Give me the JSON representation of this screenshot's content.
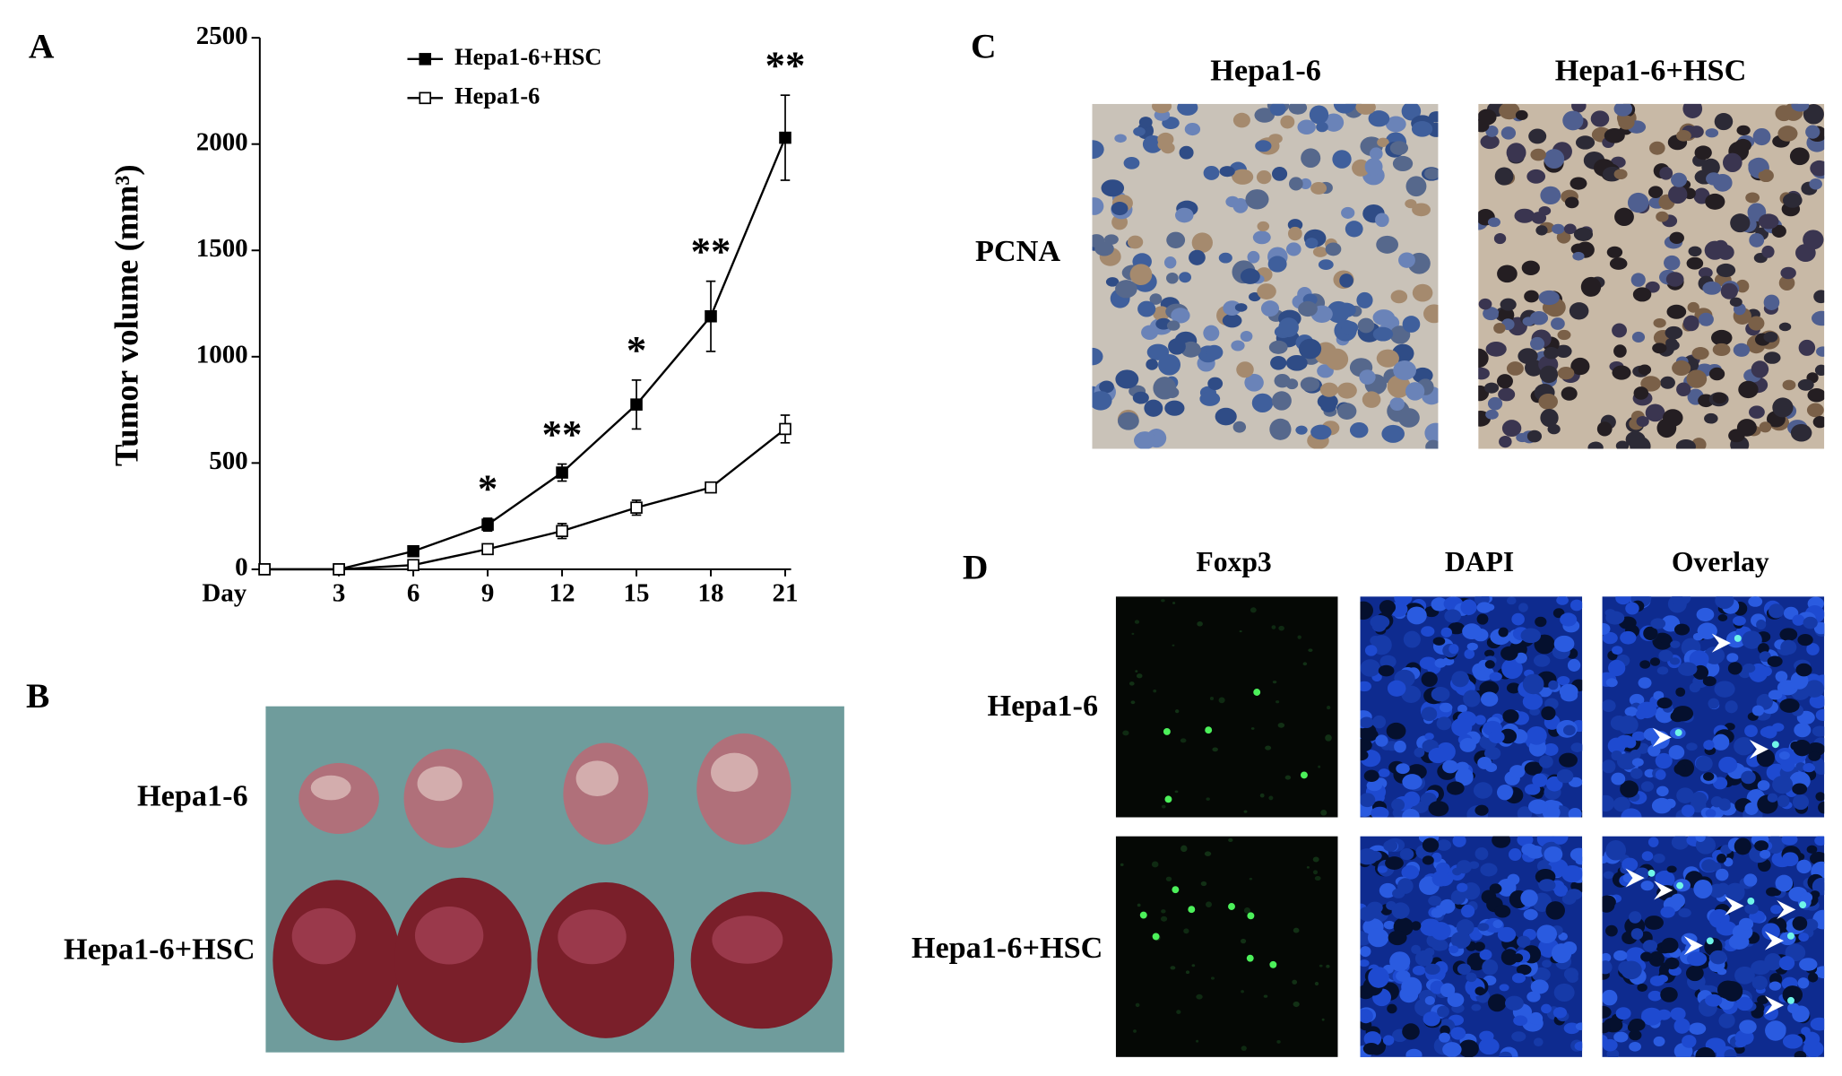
{
  "chart_data": {
    "type": "line",
    "x_label": "Day",
    "y_label": "Tumor volume (mm³)",
    "x": [
      0,
      3,
      6,
      9,
      12,
      15,
      18,
      21
    ],
    "series": [
      {
        "name": "Hepa1-6+HSC",
        "color": "#000000",
        "marker": "filled-square",
        "values": [
          0,
          0,
          85,
          210,
          455,
          775,
          1190,
          2030
        ],
        "errors": [
          null,
          null,
          null,
          30,
          40,
          115,
          165,
          200
        ]
      },
      {
        "name": "Hepa1-6",
        "color": "#000000",
        "marker": "open-square",
        "values": [
          0,
          0,
          20,
          95,
          180,
          290,
          385,
          660
        ],
        "errors": [
          null,
          null,
          null,
          null,
          35,
          35,
          15,
          65
        ]
      }
    ],
    "xlim": [
      0,
      21
    ],
    "xticks": [
      3,
      6,
      9,
      12,
      15,
      18,
      21
    ],
    "ylim": [
      0,
      2500
    ],
    "yticks": [
      0,
      500,
      1000,
      1500,
      2000,
      2500
    ],
    "annotations": [
      {
        "x": 9,
        "label": "*"
      },
      {
        "x": 12,
        "label": "**"
      },
      {
        "x": 15,
        "label": "*"
      },
      {
        "x": 18,
        "label": "**"
      },
      {
        "x": 21,
        "label": "**"
      }
    ]
  },
  "panel_letters": [
    "A",
    "B",
    "C",
    "D"
  ],
  "panel_b": {
    "row_labels": [
      "Hepa1-6",
      "Hepa1-6+HSC"
    ]
  },
  "panel_c": {
    "column_labels": [
      "Hepa1-6",
      "Hepa1-6+HSC"
    ],
    "row_label": "PCNA"
  },
  "panel_d": {
    "column_labels": [
      "Foxp3",
      "DAPI",
      "Overlay"
    ],
    "row_labels": [
      "Hepa1-6",
      "Hepa1-6+HSC"
    ]
  }
}
